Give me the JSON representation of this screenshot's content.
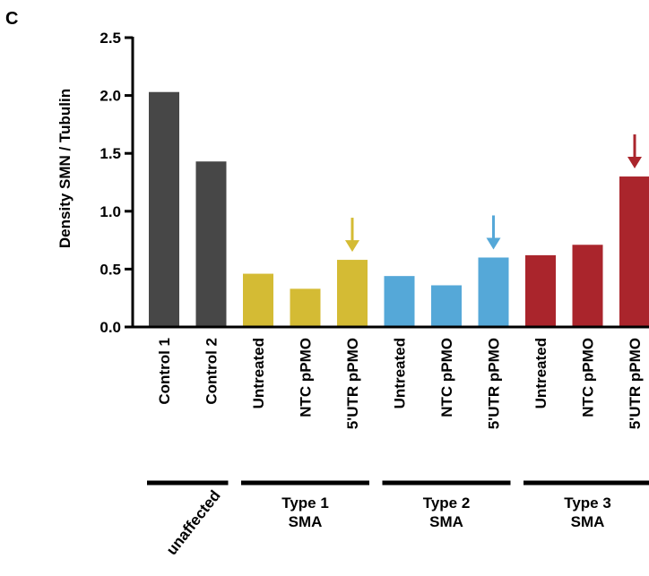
{
  "panel_label": "C",
  "chart_data": {
    "type": "bar",
    "ylabel": "Density SMN / Tubulin",
    "ylim": [
      0,
      2.5
    ],
    "yticks": [
      "0.0",
      "0.5",
      "1.0",
      "1.5",
      "2.0",
      "2.5"
    ],
    "categories": [
      "Control 1",
      "Control 2",
      "Untreated",
      "NTC pPMO",
      "5'UTR pPMO",
      "Untreated",
      "NTC pPMO",
      "5'UTR pPMO",
      "Untreated",
      "NTC pPMO",
      "5'UTR pPMO"
    ],
    "values": [
      2.03,
      1.43,
      0.46,
      0.33,
      0.58,
      0.44,
      0.36,
      0.6,
      0.62,
      0.71,
      1.3
    ],
    "bar_colors": [
      "#474747",
      "#474747",
      "#d4bb34",
      "#d4bb34",
      "#d4bb34",
      "#55a8d8",
      "#55a8d8",
      "#55a8d8",
      "#aa252c",
      "#aa252c",
      "#aa252c"
    ],
    "groups": [
      {
        "line1": "unaffected",
        "line2": "",
        "start": 0,
        "end": 1
      },
      {
        "line1": "Type 1",
        "line2": "SMA",
        "start": 2,
        "end": 4
      },
      {
        "line1": "Type 2",
        "line2": "SMA",
        "start": 5,
        "end": 7
      },
      {
        "line1": "Type 3",
        "line2": "SMA",
        "start": 8,
        "end": 10
      }
    ],
    "highlight_arrows": [
      {
        "bar": 4,
        "color": "#d4bb34"
      },
      {
        "bar": 7,
        "color": "#55a8d8"
      },
      {
        "bar": 10,
        "color": "#aa252c"
      }
    ]
  }
}
